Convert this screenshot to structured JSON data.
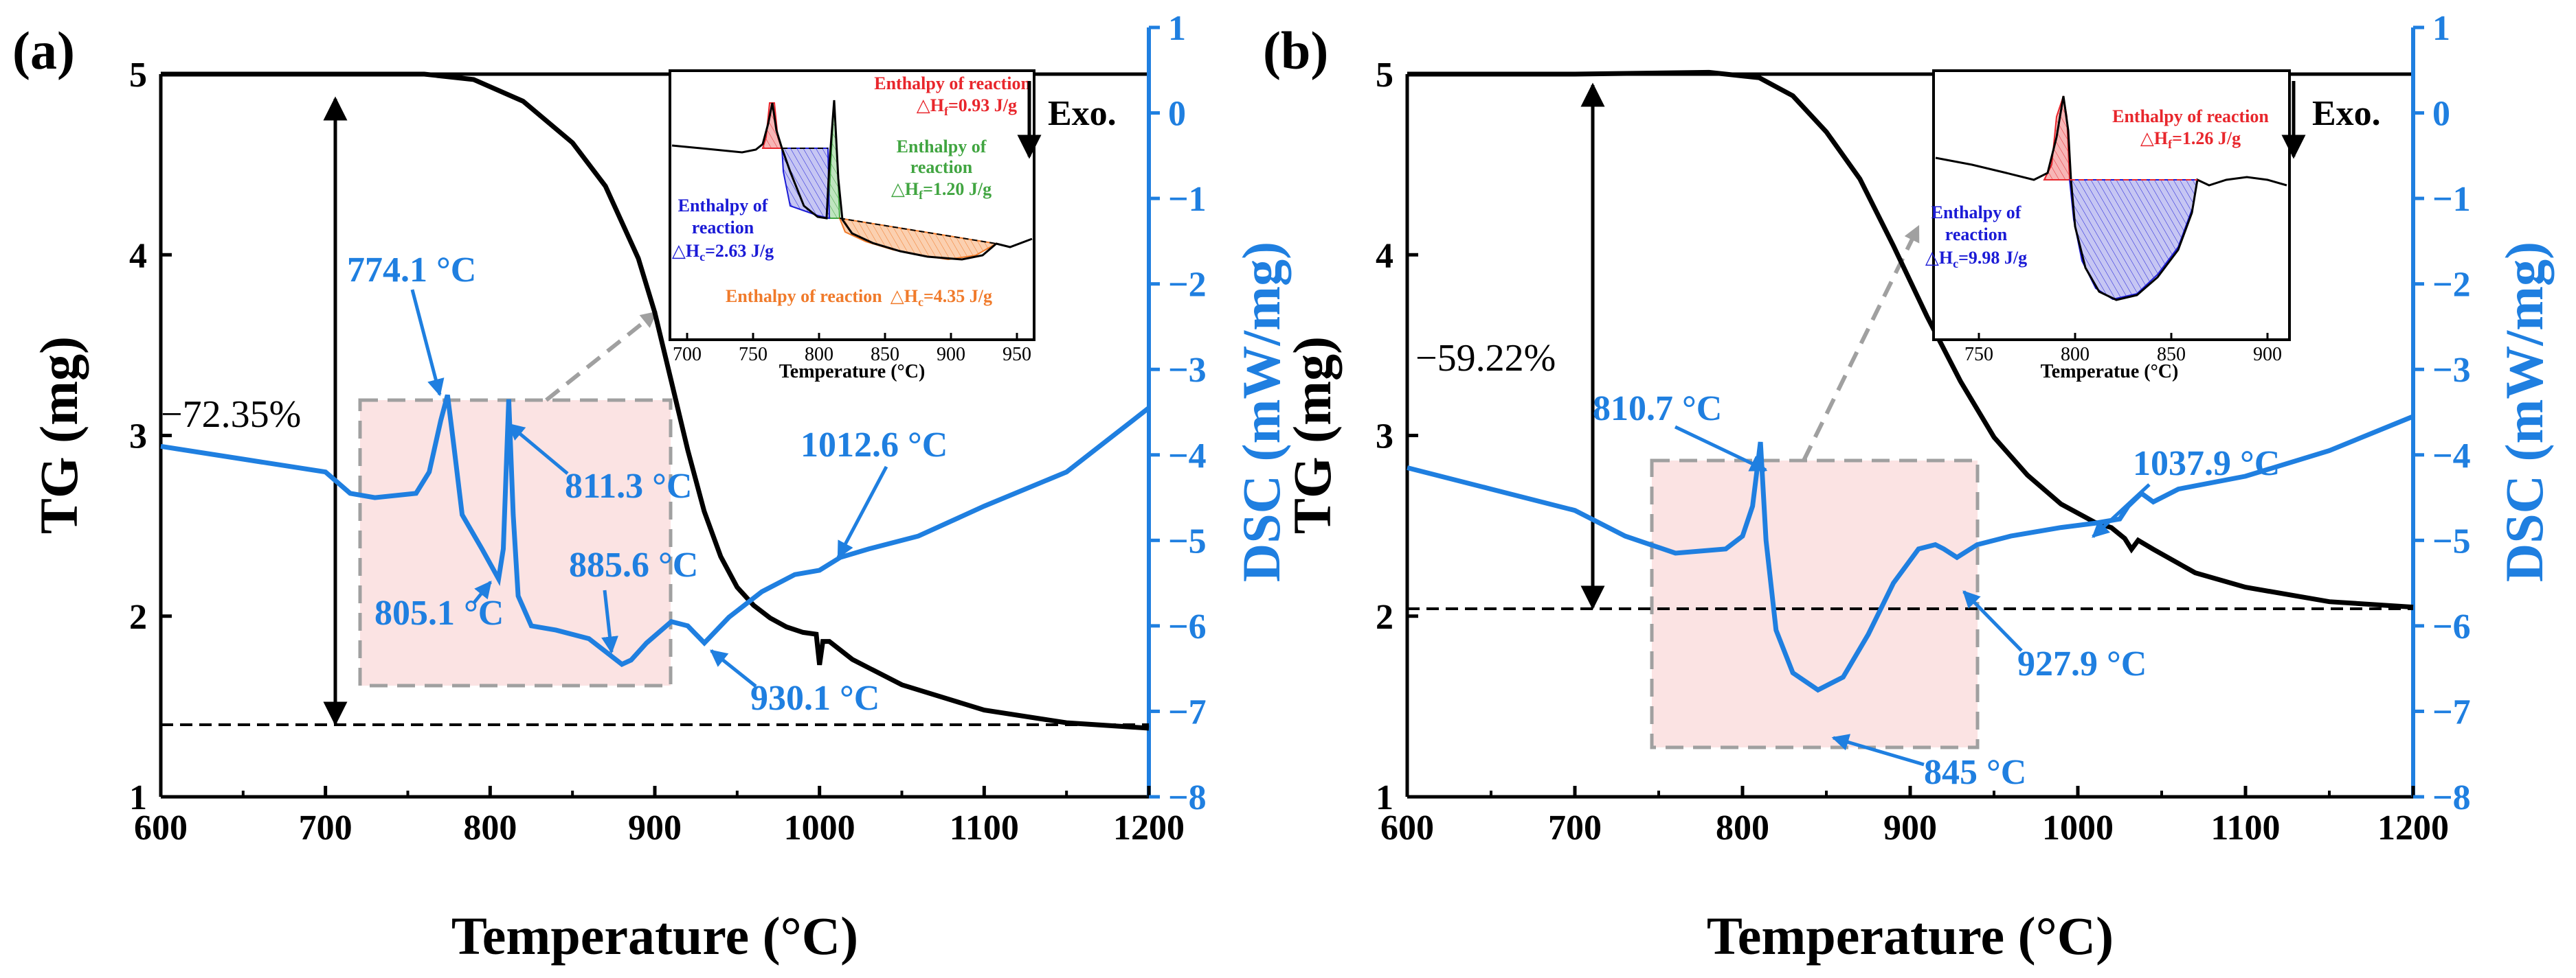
{
  "colors": {
    "tg": "#000000",
    "dsc": "#1f7fe0",
    "highlight_fill": "#fbe3e3",
    "highlight_stroke": "#a0a0a0",
    "red": "#e8262c",
    "green": "#41a541",
    "blue": "#1b1bd6",
    "orange": "#f07a2a"
  },
  "chart_data": [
    {
      "type": "line",
      "panel_label": "(a)",
      "xlabel": "Temperature (°C)",
      "ylabel_left": "TG (mg)",
      "ylabel_right": "DSC (mW/mg)",
      "xlim": [
        600,
        1200
      ],
      "ylim_left": [
        1,
        5
      ],
      "ylim_right": [
        -8,
        1
      ],
      "x_ticks": [
        "600",
        "700",
        "800",
        "900",
        "1000",
        "1100",
        "1200"
      ],
      "left_ticks": [
        "1",
        "2",
        "3",
        "4",
        "5"
      ],
      "right_ticks": [
        "1",
        "0",
        "−1",
        "−2",
        "−3",
        "−4",
        "−5",
        "−6",
        "−7",
        "−8"
      ],
      "series": [
        {
          "axis": "left",
          "x": [
            600,
            700,
            760,
            790,
            820,
            850,
            870,
            890,
            900,
            910,
            920,
            930,
            940,
            950,
            960,
            970,
            980,
            990,
            998,
            1000,
            1002,
            1006,
            1020,
            1050,
            1100,
            1150,
            1200
          ],
          "values": [
            5.0,
            5.0,
            5.0,
            4.97,
            4.85,
            4.62,
            4.38,
            3.98,
            3.68,
            3.3,
            2.92,
            2.58,
            2.33,
            2.16,
            2.06,
            1.99,
            1.94,
            1.91,
            1.9,
            1.73,
            1.86,
            1.86,
            1.76,
            1.62,
            1.48,
            1.41,
            1.38
          ]
        },
        {
          "axis": "right",
          "x": [
            600,
            650,
            700,
            715,
            730,
            755,
            763,
            770,
            774.1,
            778,
            783,
            795,
            805.1,
            808,
            811.3,
            814,
            817,
            825,
            840,
            860,
            880,
            885.6,
            895,
            910,
            920,
            930.1,
            945,
            965,
            985,
            1000,
            1012.6,
            1030,
            1060,
            1100,
            1150,
            1200
          ],
          "values": [
            -3.9,
            -4.05,
            -4.2,
            -4.45,
            -4.5,
            -4.45,
            -4.2,
            -3.6,
            -3.3,
            -3.9,
            -4.7,
            -5.1,
            -5.45,
            -5.1,
            -3.35,
            -4.7,
            -5.65,
            -6.0,
            -6.05,
            -6.15,
            -6.45,
            -6.4,
            -6.2,
            -5.95,
            -6.0,
            -6.2,
            -5.9,
            -5.6,
            -5.4,
            -5.35,
            -5.2,
            -5.1,
            -4.95,
            -4.6,
            -4.2,
            -3.45
          ]
        }
      ],
      "annotations": [
        "774.1 °C",
        "811.3 °C",
        "805.1 °C",
        "885.6 °C",
        "930.1 °C",
        "1012.6 °C",
        "−72.35%"
      ],
      "inset": {
        "xlabel": "Temperature (°C)",
        "x_ticks": [
          "700",
          "750",
          "800",
          "850",
          "900",
          "950"
        ],
        "labels": {
          "f1_title": "Enthalpy of reaction",
          "f1_value": "△H",
          "f1_sub": "f",
          "f1_num": "=0.93 J/g",
          "f2_title1": "Enthalpy of",
          "f2_title2": "reaction",
          "f2_value": "△H",
          "f2_sub": "f",
          "f2_num": "=1.20 J/g",
          "c1_title1": "Enthalpy of",
          "c1_title2": "reaction",
          "c1_value": "△H",
          "c1_sub": "c",
          "c1_num": "=2.63 J/g",
          "c2_title": "Enthalpy of reaction",
          "c2_value": "△H",
          "c2_sub": "c",
          "c2_num": "=4.35 J/g"
        }
      },
      "exo_label": "Exo."
    },
    {
      "type": "line",
      "panel_label": "(b)",
      "xlabel": "Temperature (°C)",
      "ylabel_left": "TG (mg)",
      "ylabel_right": "DSC (mW/mg)",
      "xlim": [
        600,
        1200
      ],
      "ylim_left": [
        1,
        5
      ],
      "ylim_right": [
        -8,
        1
      ],
      "x_ticks": [
        "600",
        "700",
        "800",
        "900",
        "1000",
        "1100",
        "1200"
      ],
      "left_ticks": [
        "1",
        "2",
        "3",
        "4",
        "5"
      ],
      "right_ticks": [
        "1",
        "0",
        "−1",
        "−2",
        "−3",
        "−4",
        "−5",
        "−6",
        "−7",
        "−8"
      ],
      "series": [
        {
          "axis": "left",
          "x": [
            600,
            700,
            780,
            810,
            830,
            850,
            870,
            890,
            910,
            930,
            950,
            970,
            990,
            1010,
            1020,
            1028,
            1032,
            1036,
            1045,
            1070,
            1100,
            1150,
            1200
          ],
          "values": [
            5.0,
            5.0,
            5.01,
            4.98,
            4.88,
            4.68,
            4.42,
            4.05,
            3.66,
            3.3,
            2.99,
            2.78,
            2.62,
            2.52,
            2.49,
            2.43,
            2.37,
            2.42,
            2.37,
            2.24,
            2.16,
            2.08,
            2.05
          ]
        },
        {
          "axis": "right",
          "x": [
            600,
            650,
            700,
            730,
            760,
            790,
            800,
            806,
            810.7,
            814,
            820,
            830,
            845,
            860,
            875,
            890,
            905,
            915,
            920,
            927.9,
            940,
            960,
            990,
            1010,
            1025,
            1030,
            1037.9,
            1045,
            1060,
            1100,
            1150,
            1200
          ],
          "values": [
            -4.15,
            -4.4,
            -4.65,
            -4.95,
            -5.15,
            -5.1,
            -4.95,
            -4.6,
            -3.85,
            -5.0,
            -6.05,
            -6.55,
            -6.75,
            -6.6,
            -6.1,
            -5.5,
            -5.1,
            -5.05,
            -5.1,
            -5.2,
            -5.05,
            -4.95,
            -4.85,
            -4.8,
            -4.75,
            -4.6,
            -4.45,
            -4.55,
            -4.4,
            -4.25,
            -3.95,
            -3.55
          ]
        }
      ],
      "annotations": [
        "810.7 °C",
        "845 °C",
        "927.9 °C",
        "1037.9 °C",
        "−59.22%"
      ],
      "inset": {
        "xlabel": "Temperatue (°C)",
        "x_ticks": [
          "750",
          "800",
          "850",
          "900"
        ],
        "labels": {
          "f1_title": "Enthalpy of reaction",
          "f1_value": "△H",
          "f1_sub": "f",
          "f1_num": "=1.26 J/g",
          "c1_title1": "Enthalpy of",
          "c1_title2": "reaction",
          "c1_value": "△H",
          "c1_sub": "c",
          "c1_num": "=9.98 J/g"
        }
      },
      "exo_label": "Exo."
    }
  ]
}
